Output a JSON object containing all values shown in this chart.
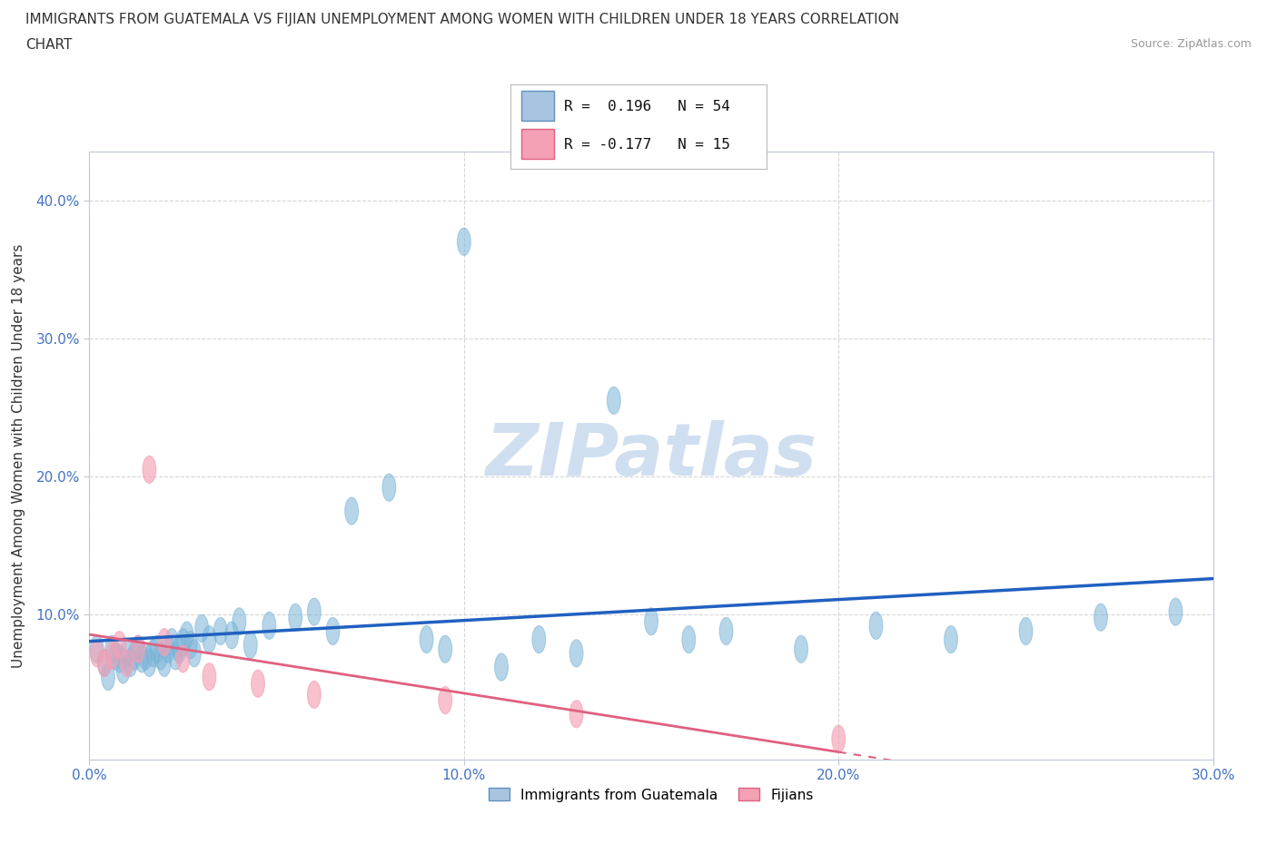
{
  "title_line1": "IMMIGRANTS FROM GUATEMALA VS FIJIAN UNEMPLOYMENT AMONG WOMEN WITH CHILDREN UNDER 18 YEARS CORRELATION",
  "title_line2": "CHART",
  "source_text": "Source: ZipAtlas.com",
  "ylabel": "Unemployment Among Women with Children Under 18 years",
  "xmin": 0.0,
  "xmax": 0.3,
  "ymin": -0.005,
  "ymax": 0.435,
  "xtick_positions": [
    0.0,
    0.1,
    0.2,
    0.3
  ],
  "xtick_labels": [
    "0.0%",
    "10.0%",
    "20.0%",
    "30.0%"
  ],
  "ytick_positions": [
    0.1,
    0.2,
    0.3,
    0.4
  ],
  "ytick_labels": [
    "10.0%",
    "20.0%",
    "30.0%",
    "40.0%"
  ],
  "guatemala_color": "#7ab4d8",
  "fijian_color": "#f4a0b5",
  "trend_guatemala_color": "#2060c0",
  "trend_fijian_color": "#e06080",
  "watermark_text": "ZIPatlas",
  "watermark_color": "#d0dff0",
  "guatemala_x": [
    0.002,
    0.004,
    0.005,
    0.006,
    0.007,
    0.008,
    0.009,
    0.01,
    0.011,
    0.012,
    0.013,
    0.014,
    0.015,
    0.016,
    0.017,
    0.018,
    0.019,
    0.02,
    0.021,
    0.022,
    0.023,
    0.024,
    0.025,
    0.026,
    0.027,
    0.028,
    0.03,
    0.032,
    0.035,
    0.038,
    0.04,
    0.043,
    0.048,
    0.055,
    0.06,
    0.065,
    0.07,
    0.08,
    0.09,
    0.095,
    0.1,
    0.11,
    0.12,
    0.13,
    0.14,
    0.15,
    0.16,
    0.17,
    0.19,
    0.21,
    0.23,
    0.25,
    0.27,
    0.29
  ],
  "guatemala_y": [
    0.075,
    0.065,
    0.055,
    0.075,
    0.07,
    0.068,
    0.06,
    0.072,
    0.065,
    0.07,
    0.075,
    0.068,
    0.07,
    0.065,
    0.072,
    0.075,
    0.07,
    0.065,
    0.075,
    0.08,
    0.07,
    0.075,
    0.08,
    0.085,
    0.078,
    0.072,
    0.09,
    0.082,
    0.088,
    0.085,
    0.095,
    0.078,
    0.092,
    0.098,
    0.102,
    0.088,
    0.175,
    0.192,
    0.082,
    0.075,
    0.37,
    0.062,
    0.082,
    0.072,
    0.255,
    0.095,
    0.082,
    0.088,
    0.075,
    0.092,
    0.082,
    0.088,
    0.098,
    0.102
  ],
  "fijian_x": [
    0.002,
    0.004,
    0.006,
    0.008,
    0.01,
    0.013,
    0.016,
    0.02,
    0.025,
    0.032,
    0.045,
    0.06,
    0.095,
    0.13,
    0.2
  ],
  "fijian_y": [
    0.072,
    0.065,
    0.07,
    0.078,
    0.065,
    0.075,
    0.205,
    0.08,
    0.068,
    0.055,
    0.05,
    0.042,
    0.038,
    0.028,
    0.01
  ]
}
